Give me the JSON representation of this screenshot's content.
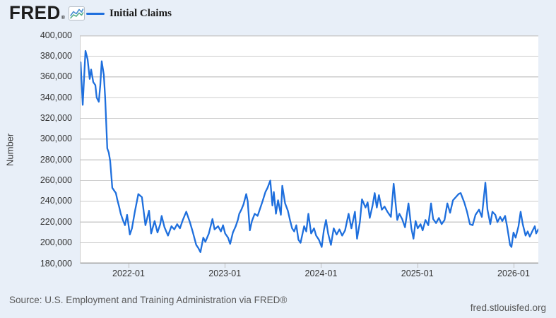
{
  "header": {
    "logo_text": "FRED",
    "logo_registered": "®",
    "legend": {
      "label": "Initial Claims",
      "swatch_color": "#1e6fdd"
    }
  },
  "chart_data": {
    "type": "line",
    "title": "",
    "series_name": "Initial Claims",
    "xlabel": "",
    "ylabel": "Number",
    "legend_position": "top-left",
    "grid": "horizontal",
    "line_color": "#1e6fdd",
    "xlim": [
      2021.4936,
      2026.257
    ],
    "ylim": [
      180000,
      400000
    ],
    "yticks": {
      "values": [
        400000,
        380000,
        360000,
        340000,
        320000,
        300000,
        280000,
        260000,
        240000,
        220000,
        200000,
        180000
      ],
      "labels": [
        "400,000",
        "380,000",
        "360,000",
        "340,000",
        "320,000",
        "300,000",
        "280,000",
        "260,000",
        "240,000",
        "220,000",
        "200,000",
        "180,000"
      ]
    },
    "xticks": {
      "values": [
        2022,
        2023,
        2024,
        2025,
        2026
      ],
      "labels": [
        "2022-01",
        "2023-01",
        "2024-01",
        "2025-01",
        "2026-01"
      ]
    },
    "points": [
      [
        2021.494,
        374000
      ],
      [
        2021.516,
        333000
      ],
      [
        2021.545,
        385000
      ],
      [
        2021.567,
        377000
      ],
      [
        2021.589,
        358000
      ],
      [
        2021.604,
        367000
      ],
      [
        2021.626,
        355000
      ],
      [
        2021.648,
        352000
      ],
      [
        2021.662,
        340000
      ],
      [
        2021.684,
        336000
      ],
      [
        2021.699,
        352000
      ],
      [
        2021.714,
        375000
      ],
      [
        2021.736,
        362000
      ],
      [
        2021.75,
        340000
      ],
      [
        2021.772,
        291000
      ],
      [
        2021.787,
        287000
      ],
      [
        2021.802,
        279000
      ],
      [
        2021.824,
        253000
      ],
      [
        2021.846,
        250000
      ],
      [
        2021.861,
        248000
      ],
      [
        2021.875,
        242000
      ],
      [
        2021.897,
        234000
      ],
      [
        2021.912,
        228000
      ],
      [
        2021.934,
        222000
      ],
      [
        2021.956,
        217000
      ],
      [
        2021.978,
        227000
      ],
      [
        2022.007,
        208000
      ],
      [
        2022.029,
        214000
      ],
      [
        2022.059,
        230000
      ],
      [
        2022.095,
        247000
      ],
      [
        2022.132,
        244000
      ],
      [
        2022.169,
        217000
      ],
      [
        2022.206,
        231000
      ],
      [
        2022.228,
        209000
      ],
      [
        2022.264,
        221000
      ],
      [
        2022.294,
        210000
      ],
      [
        2022.323,
        218000
      ],
      [
        2022.338,
        226000
      ],
      [
        2022.367,
        215000
      ],
      [
        2022.404,
        207000
      ],
      [
        2022.44,
        216000
      ],
      [
        2022.47,
        213000
      ],
      [
        2022.499,
        218000
      ],
      [
        2022.528,
        214000
      ],
      [
        2022.558,
        222000
      ],
      [
        2022.58,
        227000
      ],
      [
        2022.594,
        230000
      ],
      [
        2022.631,
        220000
      ],
      [
        2022.66,
        211000
      ],
      [
        2022.697,
        198000
      ],
      [
        2022.719,
        195000
      ],
      [
        2022.741,
        191000
      ],
      [
        2022.771,
        205000
      ],
      [
        2022.793,
        201000
      ],
      [
        2022.829,
        209000
      ],
      [
        2022.866,
        223000
      ],
      [
        2022.888,
        213000
      ],
      [
        2022.925,
        216000
      ],
      [
        2022.954,
        211000
      ],
      [
        2022.976,
        217000
      ],
      [
        2022.998,
        209000
      ],
      [
        2023.028,
        205000
      ],
      [
        2023.05,
        199000
      ],
      [
        2023.079,
        210000
      ],
      [
        2023.108,
        216000
      ],
      [
        2023.13,
        222000
      ],
      [
        2023.145,
        228000
      ],
      [
        2023.167,
        232000
      ],
      [
        2023.189,
        237000
      ],
      [
        2023.218,
        247000
      ],
      [
        2023.233,
        240000
      ],
      [
        2023.255,
        212000
      ],
      [
        2023.277,
        221000
      ],
      [
        2023.306,
        228000
      ],
      [
        2023.336,
        226000
      ],
      [
        2023.358,
        232000
      ],
      [
        2023.387,
        240000
      ],
      [
        2023.417,
        249000
      ],
      [
        2023.439,
        253000
      ],
      [
        2023.468,
        260000
      ],
      [
        2023.49,
        236000
      ],
      [
        2023.505,
        249000
      ],
      [
        2023.527,
        228000
      ],
      [
        2023.549,
        241000
      ],
      [
        2023.578,
        227000
      ],
      [
        2023.593,
        255000
      ],
      [
        2023.622,
        238000
      ],
      [
        2023.651,
        231000
      ],
      [
        2023.673,
        222000
      ],
      [
        2023.695,
        214000
      ],
      [
        2023.717,
        211000
      ],
      [
        2023.739,
        217000
      ],
      [
        2023.761,
        203000
      ],
      [
        2023.783,
        200000
      ],
      [
        2023.82,
        216000
      ],
      [
        2023.842,
        211000
      ],
      [
        2023.864,
        228000
      ],
      [
        2023.893,
        209000
      ],
      [
        2023.923,
        214000
      ],
      [
        2023.945,
        207000
      ],
      [
        2023.974,
        203000
      ],
      [
        2024.003,
        196000
      ],
      [
        2024.025,
        212000
      ],
      [
        2024.048,
        222000
      ],
      [
        2024.07,
        209000
      ],
      [
        2024.099,
        198000
      ],
      [
        2024.128,
        214000
      ],
      [
        2024.158,
        208000
      ],
      [
        2024.187,
        213000
      ],
      [
        2024.216,
        207000
      ],
      [
        2024.246,
        212000
      ],
      [
        2024.283,
        228000
      ],
      [
        2024.312,
        214000
      ],
      [
        2024.349,
        230000
      ],
      [
        2024.371,
        204000
      ],
      [
        2024.4,
        220000
      ],
      [
        2024.422,
        242000
      ],
      [
        2024.459,
        234000
      ],
      [
        2024.481,
        239000
      ],
      [
        2024.503,
        224000
      ],
      [
        2024.532,
        236000
      ],
      [
        2024.554,
        248000
      ],
      [
        2024.576,
        234000
      ],
      [
        2024.598,
        246000
      ],
      [
        2024.628,
        232000
      ],
      [
        2024.657,
        235000
      ],
      [
        2024.686,
        230000
      ],
      [
        2024.723,
        225000
      ],
      [
        2024.752,
        257000
      ],
      [
        2024.789,
        222000
      ],
      [
        2024.811,
        228000
      ],
      [
        2024.84,
        223000
      ],
      [
        2024.87,
        215000
      ],
      [
        2024.906,
        238000
      ],
      [
        2024.936,
        214000
      ],
      [
        2024.958,
        204000
      ],
      [
        2024.98,
        221000
      ],
      [
        2025.002,
        214000
      ],
      [
        2025.031,
        218000
      ],
      [
        2025.053,
        212000
      ],
      [
        2025.083,
        222000
      ],
      [
        2025.112,
        217000
      ],
      [
        2025.141,
        238000
      ],
      [
        2025.163,
        223000
      ],
      [
        2025.193,
        219000
      ],
      [
        2025.222,
        224000
      ],
      [
        2025.251,
        218000
      ],
      [
        2025.281,
        222000
      ],
      [
        2025.31,
        238000
      ],
      [
        2025.339,
        229000
      ],
      [
        2025.369,
        241000
      ],
      [
        2025.398,
        244000
      ],
      [
        2025.427,
        247000
      ],
      [
        2025.449,
        248000
      ],
      [
        2025.486,
        239000
      ],
      [
        2025.515,
        230000
      ],
      [
        2025.545,
        218000
      ],
      [
        2025.574,
        217000
      ],
      [
        2025.603,
        227000
      ],
      [
        2025.64,
        232000
      ],
      [
        2025.669,
        225000
      ],
      [
        2025.706,
        258000
      ],
      [
        2025.728,
        232000
      ],
      [
        2025.757,
        218000
      ],
      [
        2025.779,
        230000
      ],
      [
        2025.809,
        227000
      ],
      [
        2025.831,
        220000
      ],
      [
        2025.86,
        225000
      ],
      [
        2025.882,
        221000
      ],
      [
        2025.911,
        226000
      ],
      [
        2025.933,
        215000
      ],
      [
        2025.963,
        198000
      ],
      [
        2025.977,
        196000
      ],
      [
        2025.999,
        210000
      ],
      [
        2026.021,
        205000
      ],
      [
        2026.051,
        216000
      ],
      [
        2026.073,
        230000
      ],
      [
        2026.095,
        218000
      ],
      [
        2026.124,
        207000
      ],
      [
        2026.146,
        211000
      ],
      [
        2026.168,
        206000
      ],
      [
        2026.198,
        212000
      ],
      [
        2026.22,
        216000
      ],
      [
        2026.234,
        209000
      ],
      [
        2026.256,
        213000
      ]
    ]
  },
  "footer": {
    "source": "Source: U.S. Employment and Training Administration via FRED®",
    "site": "fred.stlouisfed.org"
  }
}
